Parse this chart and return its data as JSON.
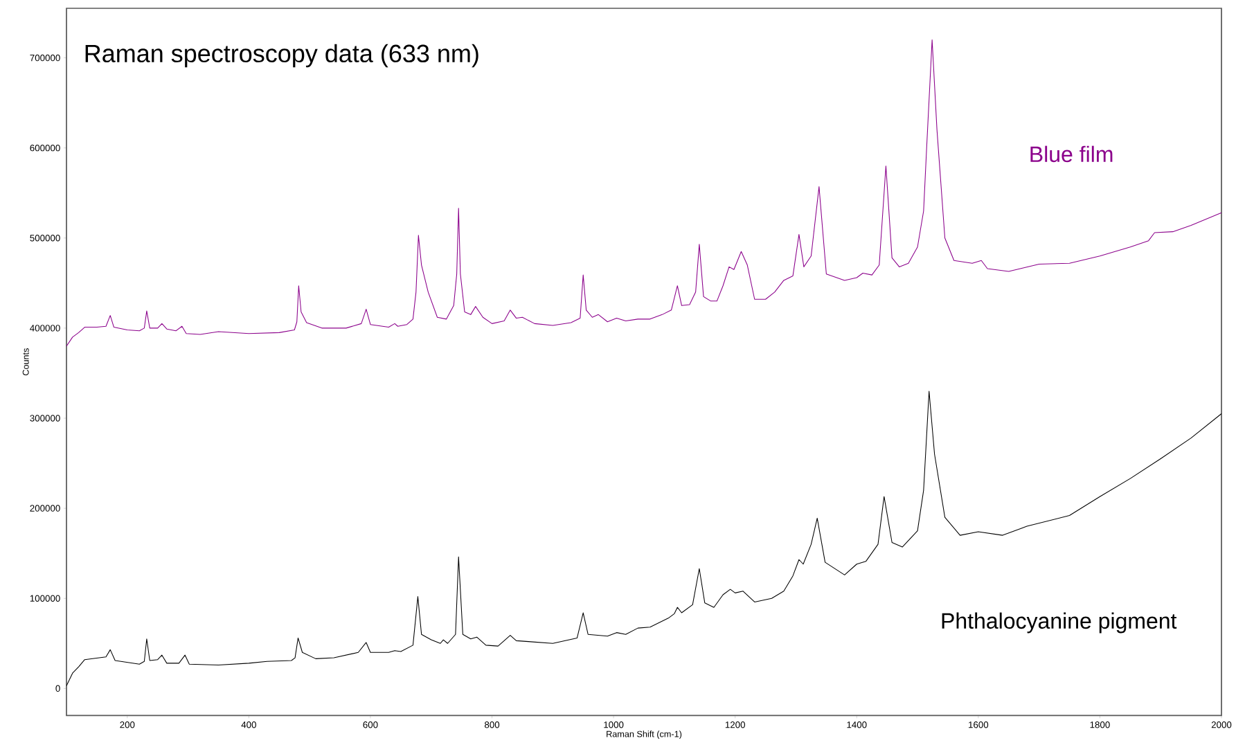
{
  "chart_data": {
    "type": "line",
    "title": "Raman spectroscopy data (633 nm)",
    "xlabel": "Raman Shift (cm-1)",
    "ylabel": "Counts",
    "xlim": [
      100,
      2000
    ],
    "ylim": [
      -30000,
      755000
    ],
    "xticks": [
      200,
      400,
      600,
      800,
      1000,
      1200,
      1400,
      1600,
      1800,
      2000
    ],
    "yticks": [
      0,
      100000,
      200000,
      300000,
      400000,
      500000,
      600000,
      700000
    ],
    "grid": false,
    "marker": "none",
    "line_style": "solid",
    "series": [
      {
        "name": "Blue film",
        "color": "#8b008b",
        "x": [
          100,
          110,
          120,
          130,
          150,
          165,
          172,
          178,
          200,
          220,
          228,
          232,
          237,
          250,
          257,
          265,
          280,
          290,
          297,
          320,
          350,
          400,
          450,
          475,
          479,
          482,
          486,
          495,
          520,
          560,
          585,
          593,
          600,
          630,
          640,
          645,
          660,
          670,
          675,
          679,
          684,
          695,
          710,
          725,
          737,
          742,
          745,
          748,
          755,
          765,
          773,
          785,
          800,
          820,
          830,
          840,
          850,
          870,
          900,
          930,
          945,
          950,
          955,
          965,
          975,
          990,
          1005,
          1020,
          1040,
          1060,
          1080,
          1095,
          1105,
          1112,
          1125,
          1135,
          1141,
          1148,
          1160,
          1170,
          1180,
          1190,
          1198,
          1210,
          1220,
          1232,
          1250,
          1265,
          1280,
          1295,
          1305,
          1313,
          1325,
          1338,
          1350,
          1380,
          1400,
          1410,
          1425,
          1437,
          1448,
          1458,
          1470,
          1485,
          1500,
          1510,
          1515,
          1524,
          1532,
          1545,
          1560,
          1590,
          1605,
          1615,
          1650,
          1700,
          1750,
          1800,
          1850,
          1880,
          1890,
          1920,
          1950,
          2000
        ],
        "values": [
          380000,
          390000,
          395000,
          401000,
          401000,
          402000,
          414000,
          401000,
          398000,
          397000,
          400000,
          419000,
          400000,
          400000,
          405000,
          399000,
          397000,
          402000,
          394000,
          393000,
          396000,
          394000,
          395000,
          398000,
          407000,
          447000,
          418000,
          406000,
          400000,
          400000,
          405000,
          421000,
          404000,
          401000,
          405000,
          402000,
          404000,
          410000,
          440000,
          503000,
          470000,
          440000,
          412000,
          410000,
          425000,
          460000,
          533000,
          460000,
          418000,
          415000,
          424000,
          412000,
          405000,
          408000,
          420000,
          411000,
          412000,
          405000,
          403000,
          406000,
          411000,
          459000,
          420000,
          412000,
          415000,
          407000,
          411000,
          408000,
          410000,
          410000,
          415000,
          420000,
          447000,
          425000,
          426000,
          440000,
          493000,
          435000,
          430000,
          430000,
          447000,
          468000,
          465000,
          485000,
          470000,
          432000,
          432000,
          440000,
          453000,
          458000,
          504000,
          468000,
          480000,
          557000,
          460000,
          453000,
          456000,
          461000,
          459000,
          470000,
          580000,
          478000,
          468000,
          472000,
          490000,
          530000,
          600000,
          720000,
          620000,
          500000,
          475000,
          472000,
          475000,
          466000,
          463000,
          471000,
          472000,
          480000,
          490000,
          497000,
          506000,
          507000,
          514000,
          528000
        ]
      },
      {
        "name": "Phthalocyanine pigment",
        "color": "#000000",
        "x": [
          100,
          110,
          120,
          130,
          165,
          172,
          180,
          220,
          228,
          232,
          237,
          250,
          257,
          265,
          285,
          295,
          302,
          350,
          400,
          430,
          470,
          476,
          481,
          488,
          510,
          540,
          580,
          593,
          600,
          630,
          640,
          650,
          670,
          678,
          684,
          700,
          715,
          720,
          727,
          740,
          745,
          752,
          765,
          775,
          790,
          810,
          830,
          840,
          860,
          900,
          940,
          950,
          958,
          990,
          1005,
          1020,
          1040,
          1060,
          1090,
          1100,
          1105,
          1112,
          1130,
          1141,
          1150,
          1165,
          1180,
          1192,
          1200,
          1213,
          1232,
          1260,
          1280,
          1295,
          1305,
          1312,
          1325,
          1335,
          1348,
          1380,
          1400,
          1415,
          1435,
          1445,
          1458,
          1475,
          1500,
          1510,
          1519,
          1528,
          1545,
          1570,
          1600,
          1640,
          1680,
          1750,
          1800,
          1850,
          1900,
          1950,
          2000
        ],
        "values": [
          3000,
          17000,
          24000,
          32000,
          35000,
          43000,
          31000,
          27000,
          30000,
          55000,
          31000,
          32000,
          37000,
          28000,
          28000,
          37000,
          27000,
          26000,
          28000,
          30000,
          31000,
          34000,
          56000,
          40000,
          33000,
          34000,
          40000,
          51000,
          40000,
          40000,
          42000,
          41000,
          48000,
          102000,
          60000,
          54000,
          50000,
          54000,
          50000,
          60000,
          146000,
          60000,
          55000,
          57000,
          48000,
          47000,
          59000,
          53000,
          52000,
          50000,
          56000,
          84000,
          60000,
          58000,
          62000,
          60000,
          67000,
          68000,
          78000,
          83000,
          90000,
          84000,
          93000,
          133000,
          95000,
          90000,
          104000,
          110000,
          106000,
          108000,
          96000,
          100000,
          108000,
          125000,
          143000,
          138000,
          160000,
          189000,
          140000,
          126000,
          138000,
          141000,
          160000,
          213000,
          162000,
          157000,
          175000,
          220000,
          330000,
          260000,
          190000,
          170000,
          174000,
          170000,
          180000,
          192000,
          213000,
          233000,
          255000,
          278000,
          305000
        ]
      }
    ]
  }
}
